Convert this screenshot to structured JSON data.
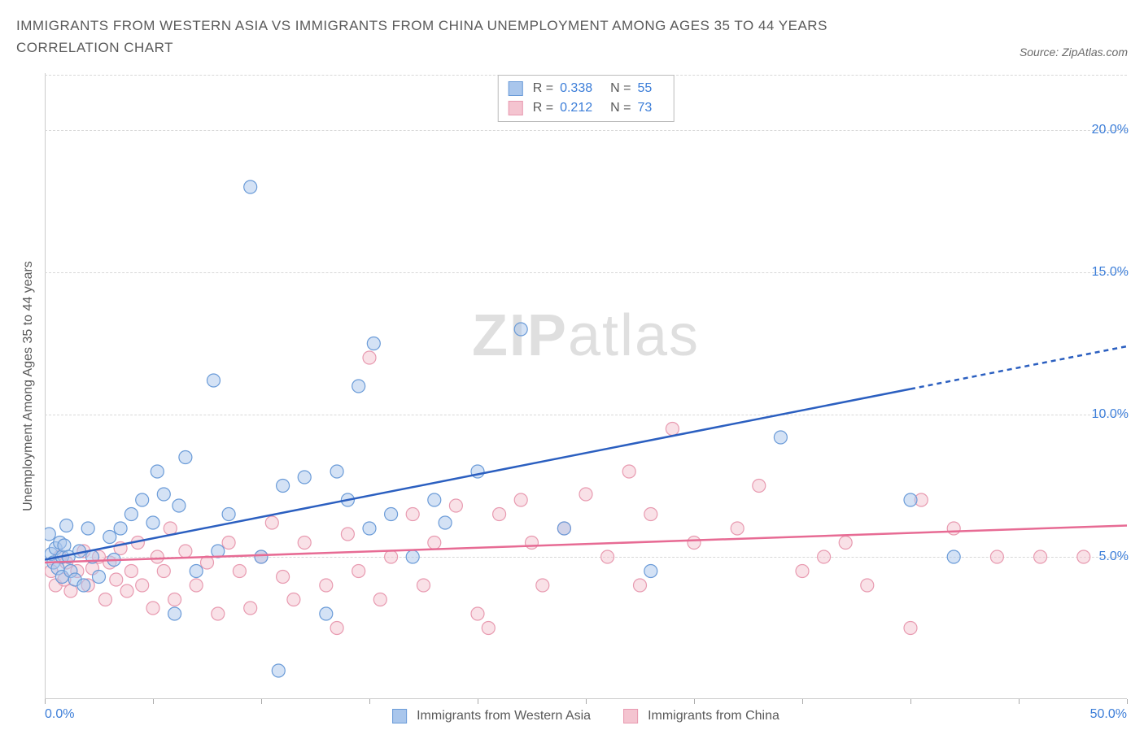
{
  "title": "IMMIGRANTS FROM WESTERN ASIA VS IMMIGRANTS FROM CHINA UNEMPLOYMENT AMONG AGES 35 TO 44 YEARS CORRELATION CHART",
  "source": "Source: ZipAtlas.com",
  "watermark_1": "ZIP",
  "watermark_2": "atlas",
  "chart": {
    "type": "scatter",
    "ylabel": "Unemployment Among Ages 35 to 44 years",
    "xlim": [
      0,
      50
    ],
    "ylim": [
      0,
      22
    ],
    "yticks": [
      5,
      10,
      15,
      20
    ],
    "ytick_labels": [
      "5.0%",
      "10.0%",
      "15.0%",
      "20.0%"
    ],
    "xticks": [
      0,
      5,
      10,
      15,
      20,
      25,
      30,
      35,
      40,
      45,
      50
    ],
    "xtick_labels": {
      "0": "0.0%",
      "50": "50.0%"
    },
    "grid_color": "#d8d8d8",
    "axis_color": "#cccccc",
    "background_color": "#ffffff",
    "tick_color": "#3b7dd8",
    "label_color": "#5a5a5a",
    "marker_radius": 8,
    "marker_opacity": 0.5,
    "marker_stroke_width": 1.2,
    "trend_line_width": 2.5,
    "series": [
      {
        "name": "Immigrants from Western Asia",
        "color_fill": "#a9c6ec",
        "color_stroke": "#6a9bd8",
        "trend_color": "#2b5fc0",
        "R": "0.338",
        "N": "55",
        "trend": {
          "x1": 0,
          "y1": 4.9,
          "x2": 40,
          "y2": 10.9,
          "x3": 50,
          "y3": 12.4
        },
        "points": [
          [
            0.2,
            5.8
          ],
          [
            0.3,
            5.1
          ],
          [
            0.4,
            4.8
          ],
          [
            0.5,
            5.3
          ],
          [
            0.6,
            4.6
          ],
          [
            0.7,
            5.5
          ],
          [
            0.8,
            5.0
          ],
          [
            0.8,
            4.3
          ],
          [
            0.9,
            5.4
          ],
          [
            1.0,
            6.1
          ],
          [
            1.1,
            5.0
          ],
          [
            1.2,
            4.5
          ],
          [
            1.4,
            4.2
          ],
          [
            1.6,
            5.2
          ],
          [
            1.8,
            4.0
          ],
          [
            2.0,
            6.0
          ],
          [
            2.2,
            5.0
          ],
          [
            2.5,
            4.3
          ],
          [
            3.0,
            5.7
          ],
          [
            3.2,
            4.9
          ],
          [
            3.5,
            6.0
          ],
          [
            4.0,
            6.5
          ],
          [
            4.5,
            7.0
          ],
          [
            5.0,
            6.2
          ],
          [
            5.2,
            8.0
          ],
          [
            5.5,
            7.2
          ],
          [
            6.0,
            3.0
          ],
          [
            6.2,
            6.8
          ],
          [
            6.5,
            8.5
          ],
          [
            7.0,
            4.5
          ],
          [
            7.8,
            11.2
          ],
          [
            8.0,
            5.2
          ],
          [
            8.5,
            6.5
          ],
          [
            9.5,
            18.0
          ],
          [
            10.0,
            5.0
          ],
          [
            10.8,
            1.0
          ],
          [
            11.0,
            7.5
          ],
          [
            12.0,
            7.8
          ],
          [
            13.0,
            3.0
          ],
          [
            13.5,
            8.0
          ],
          [
            14.0,
            7.0
          ],
          [
            14.5,
            11.0
          ],
          [
            15.0,
            6.0
          ],
          [
            15.2,
            12.5
          ],
          [
            16.0,
            6.5
          ],
          [
            17.0,
            5.0
          ],
          [
            18.0,
            7.0
          ],
          [
            18.5,
            6.2
          ],
          [
            20.0,
            8.0
          ],
          [
            22.0,
            13.0
          ],
          [
            24.0,
            6.0
          ],
          [
            28.0,
            4.5
          ],
          [
            34.0,
            9.2
          ],
          [
            40.0,
            7.0
          ],
          [
            42.0,
            5.0
          ]
        ]
      },
      {
        "name": "Immigrants from China",
        "color_fill": "#f4c4d0",
        "color_stroke": "#e89ab0",
        "trend_color": "#e76b94",
        "R": "0.212",
        "N": "73",
        "trend": {
          "x1": 0,
          "y1": 4.8,
          "x2": 50,
          "y2": 6.1
        },
        "points": [
          [
            0.3,
            4.5
          ],
          [
            0.5,
            4.0
          ],
          [
            0.7,
            5.0
          ],
          [
            0.9,
            4.2
          ],
          [
            1.0,
            4.8
          ],
          [
            1.2,
            3.8
          ],
          [
            1.5,
            4.5
          ],
          [
            1.8,
            5.2
          ],
          [
            2.0,
            4.0
          ],
          [
            2.2,
            4.6
          ],
          [
            2.5,
            5.0
          ],
          [
            2.8,
            3.5
          ],
          [
            3.0,
            4.8
          ],
          [
            3.3,
            4.2
          ],
          [
            3.5,
            5.3
          ],
          [
            3.8,
            3.8
          ],
          [
            4.0,
            4.5
          ],
          [
            4.3,
            5.5
          ],
          [
            4.5,
            4.0
          ],
          [
            5.0,
            3.2
          ],
          [
            5.2,
            5.0
          ],
          [
            5.5,
            4.5
          ],
          [
            5.8,
            6.0
          ],
          [
            6.0,
            3.5
          ],
          [
            6.5,
            5.2
          ],
          [
            7.0,
            4.0
          ],
          [
            7.5,
            4.8
          ],
          [
            8.0,
            3.0
          ],
          [
            8.5,
            5.5
          ],
          [
            9.0,
            4.5
          ],
          [
            9.5,
            3.2
          ],
          [
            10.0,
            5.0
          ],
          [
            10.5,
            6.2
          ],
          [
            11.0,
            4.3
          ],
          [
            11.5,
            3.5
          ],
          [
            12.0,
            5.5
          ],
          [
            13.0,
            4.0
          ],
          [
            13.5,
            2.5
          ],
          [
            14.0,
            5.8
          ],
          [
            14.5,
            4.5
          ],
          [
            15.0,
            12.0
          ],
          [
            15.5,
            3.5
          ],
          [
            16.0,
            5.0
          ],
          [
            17.0,
            6.5
          ],
          [
            17.5,
            4.0
          ],
          [
            18.0,
            5.5
          ],
          [
            19.0,
            6.8
          ],
          [
            20.0,
            3.0
          ],
          [
            20.5,
            2.5
          ],
          [
            21.0,
            6.5
          ],
          [
            22.0,
            7.0
          ],
          [
            22.5,
            5.5
          ],
          [
            23.0,
            4.0
          ],
          [
            24.0,
            6.0
          ],
          [
            25.0,
            7.2
          ],
          [
            26.0,
            5.0
          ],
          [
            27.0,
            8.0
          ],
          [
            27.5,
            4.0
          ],
          [
            28.0,
            6.5
          ],
          [
            29.0,
            9.5
          ],
          [
            30.0,
            5.5
          ],
          [
            32.0,
            6.0
          ],
          [
            33.0,
            7.5
          ],
          [
            35.0,
            4.5
          ],
          [
            36.0,
            5.0
          ],
          [
            37.0,
            5.5
          ],
          [
            38.0,
            4.0
          ],
          [
            40.0,
            2.5
          ],
          [
            40.5,
            7.0
          ],
          [
            42.0,
            6.0
          ],
          [
            44.0,
            5.0
          ],
          [
            46.0,
            5.0
          ],
          [
            48.0,
            5.0
          ]
        ]
      }
    ]
  },
  "legend": {
    "series1_label": "Immigrants from Western Asia",
    "series2_label": "Immigrants from China"
  },
  "stats": {
    "r_label": "R =",
    "n_label": "N ="
  }
}
